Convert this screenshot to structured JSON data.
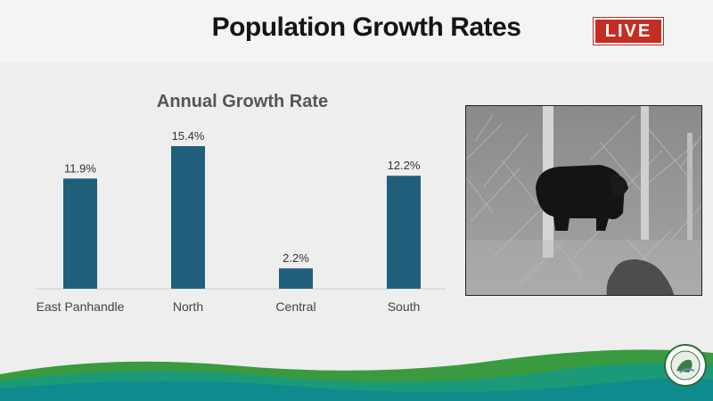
{
  "slide": {
    "title": "Population Growth Rates",
    "live_badge": "LIVE"
  },
  "chart_data": {
    "type": "bar",
    "title": "Annual Growth Rate",
    "categories": [
      "East Panhandle",
      "North",
      "Central",
      "South"
    ],
    "values": [
      11.9,
      15.4,
      2.2,
      12.2
    ],
    "value_labels": [
      "11.9%",
      "15.4%",
      "2.2%",
      "12.2%"
    ],
    "xlabel": "",
    "ylabel": "",
    "ylim": [
      0,
      15.4
    ],
    "grid": false,
    "legend": "none",
    "bar_color": "#1f5f7c"
  },
  "photo": {
    "icon": "trail-camera-bear-icon"
  },
  "logo": {
    "icon": "agency-seal-icon"
  },
  "colors": {
    "background": "#eeeeee",
    "live_red": "#c42d23",
    "bar_blue": "#1f5f7c",
    "wave_green": "#3a9a3f",
    "wave_teal": "#0f8b8d"
  }
}
